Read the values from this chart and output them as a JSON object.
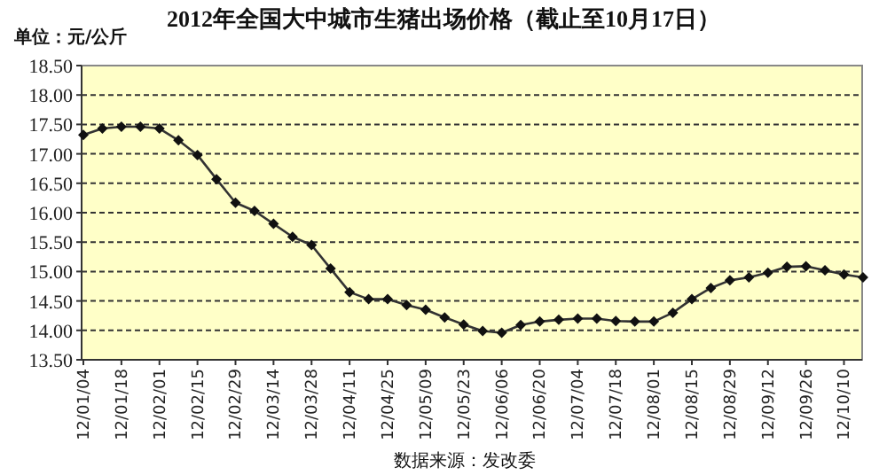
{
  "chart_data": {
    "type": "line",
    "title": "2012年全国大中城市生猪出场价格（截止至10月17日）",
    "ylabel": "单位：元/公斤",
    "annotations": [
      "数据来源：发改委"
    ],
    "categories": [
      "12/01/04",
      null,
      "12/01/18",
      null,
      "12/02/01",
      null,
      "12/02/15",
      null,
      "12/02/29",
      null,
      "12/03/14",
      null,
      "12/03/28",
      null,
      "12/04/11",
      null,
      "12/04/25",
      null,
      "12/05/09",
      null,
      "12/05/23",
      null,
      "12/06/06",
      null,
      "12/06/20",
      null,
      "12/07/04",
      null,
      "12/07/18",
      null,
      "12/08/01",
      null,
      "12/08/15",
      null,
      "12/08/29",
      null,
      "12/09/12",
      null,
      "12/09/26",
      null,
      "12/10/10",
      null
    ],
    "series": [
      {
        "color": "#333333",
        "values": [
          17.32,
          17.43,
          17.46,
          17.46,
          17.43,
          17.23,
          16.98,
          16.57,
          16.17,
          16.03,
          15.81,
          15.59,
          15.45,
          15.05,
          14.65,
          14.53,
          14.53,
          14.43,
          14.35,
          14.22,
          14.1,
          13.99,
          13.96,
          14.09,
          14.15,
          14.18,
          14.2,
          14.2,
          14.16,
          14.15,
          14.15,
          14.3,
          14.53,
          14.72,
          14.85,
          14.9,
          14.98,
          15.08,
          15.09,
          15.02,
          14.95,
          14.9
        ]
      }
    ],
    "ylim": [
      13.5,
      18.5
    ],
    "yticks": [
      {
        "value": 13.5,
        "label": "13.50"
      },
      {
        "value": 14,
        "label": "14.00"
      },
      {
        "value": 14.5,
        "label": "14.50"
      },
      {
        "value": 15,
        "label": "15.00"
      },
      {
        "value": 15.5,
        "label": "15.50"
      },
      {
        "value": 16,
        "label": "16.00"
      },
      {
        "value": 16.5,
        "label": "16.50"
      },
      {
        "value": 17,
        "label": "17.00"
      },
      {
        "value": 17.5,
        "label": "17.50"
      },
      {
        "value": 18,
        "label": "18.00"
      },
      {
        "value": 18.5,
        "label": "18.50"
      }
    ],
    "grid": "y",
    "marker": "diamond",
    "line_style": "solid"
  }
}
